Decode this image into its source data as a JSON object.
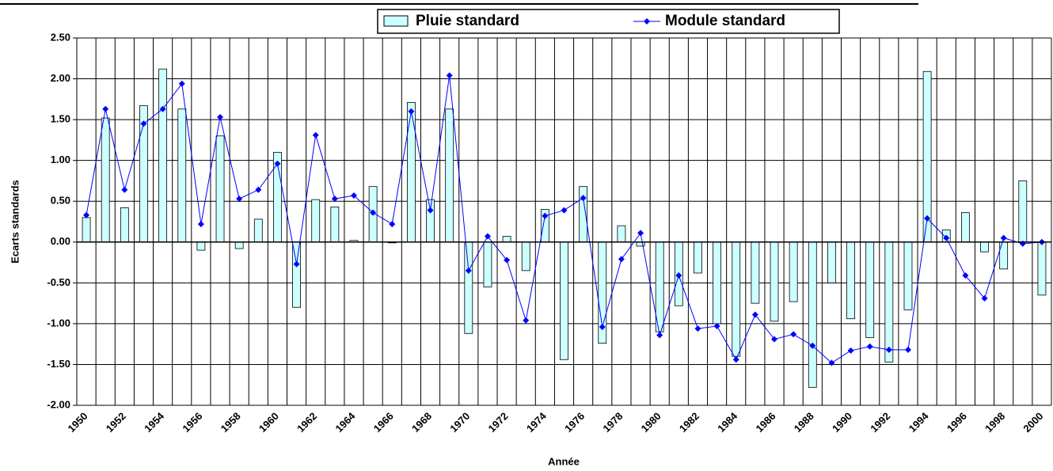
{
  "chart_data": {
    "type": "bar_line",
    "x_label": "Année",
    "y_label": "Ecarts standards",
    "categories": [
      "1950",
      null,
      "1952",
      null,
      "1954",
      null,
      "1956",
      null,
      "1958",
      null,
      "1960",
      null,
      "1962",
      null,
      "1964",
      null,
      "1966",
      null,
      "1968",
      null,
      "1970",
      null,
      "1972",
      null,
      "1974",
      null,
      "1976",
      null,
      "1978",
      null,
      "1980",
      null,
      "1982",
      null,
      "1984",
      null,
      "1986",
      null,
      "1988",
      null,
      "1990",
      null,
      "1992",
      null,
      "1994",
      null,
      "1996",
      null,
      "1998",
      null,
      "2000"
    ],
    "series": [
      {
        "name": "Pluie standard",
        "type": "bar",
        "color": "#ccffff",
        "values": [
          0.3,
          1.52,
          0.42,
          1.67,
          2.12,
          1.63,
          -0.1,
          1.3,
          -0.08,
          0.28,
          1.1,
          -0.8,
          0.52,
          0.43,
          0.02,
          0.68,
          -0.01,
          1.71,
          0.52,
          1.63,
          -1.12,
          -0.55,
          0.07,
          -0.35,
          0.4,
          -1.44,
          0.68,
          -1.24,
          0.2,
          -0.05,
          -1.1,
          -0.78,
          -0.38,
          -1.0,
          -1.4,
          -0.75,
          -0.97,
          -0.73,
          -1.78,
          -0.5,
          -0.94,
          -1.17,
          -1.47,
          -0.83,
          2.09,
          0.15,
          0.36,
          -0.12,
          -0.33,
          0.75,
          -0.65
        ]
      },
      {
        "name": "Module standard",
        "type": "line",
        "color": "#0000ff",
        "values": [
          0.33,
          1.63,
          0.64,
          1.45,
          1.63,
          1.94,
          0.22,
          1.53,
          0.53,
          0.64,
          0.96,
          -0.27,
          1.31,
          0.53,
          0.57,
          0.36,
          0.22,
          1.6,
          0.39,
          2.04,
          -0.35,
          0.07,
          -0.22,
          -0.96,
          0.32,
          0.39,
          0.54,
          -1.04,
          -0.21,
          0.11,
          -1.14,
          -0.41,
          -1.06,
          -1.03,
          -1.44,
          -0.89,
          -1.19,
          -1.13,
          -1.27,
          -1.48,
          -1.33,
          -1.28,
          -1.32,
          -1.32,
          0.29,
          0.05,
          -0.41,
          -0.69,
          0.05,
          -0.02,
          0.0
        ]
      }
    ],
    "ylim": [
      -2,
      2.5
    ],
    "yticks": [
      {
        "value": -2,
        "label": "-2.00"
      },
      {
        "value": -1.5,
        "label": "-1.50"
      },
      {
        "value": -1,
        "label": "-1.00"
      },
      {
        "value": -0.5,
        "label": "-0.50"
      },
      {
        "value": 0,
        "label": "0.00"
      },
      {
        "value": 0.5,
        "label": "0.50"
      },
      {
        "value": 1,
        "label": "1.00"
      },
      {
        "value": 1.5,
        "label": "1.50"
      },
      {
        "value": 2,
        "label": "2.00"
      },
      {
        "value": 2.5,
        "label": "2.50"
      }
    ],
    "grid": true,
    "legend": "top"
  }
}
